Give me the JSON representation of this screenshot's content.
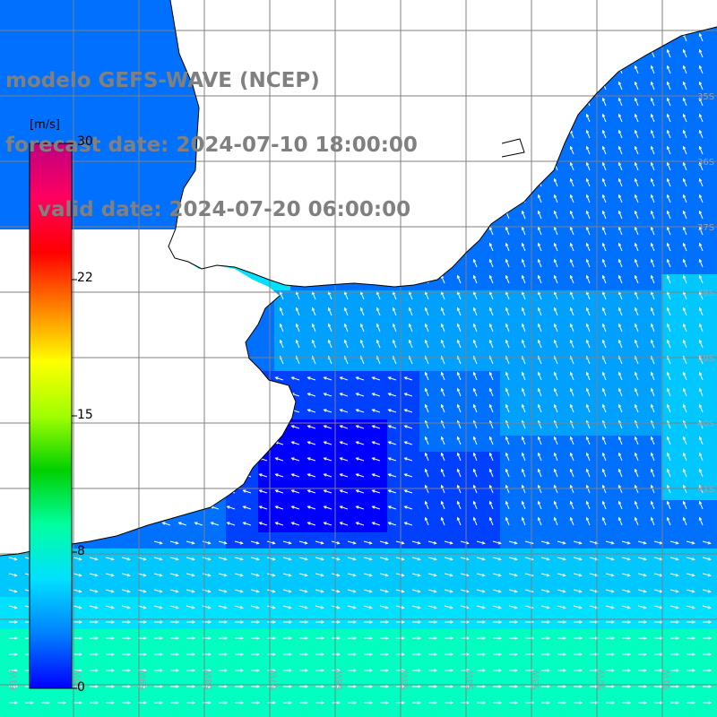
{
  "title": {
    "model": "modelo GEFS-WAVE (NCEP)",
    "forecast": "forecast date: 2024-07-10 18:00:00",
    "valid": "valid date: 2024-07-20 06:00:00"
  },
  "colorbar": {
    "unit": "[m/s]",
    "ticks": [
      "30",
      "22",
      "15",
      "8",
      "0"
    ],
    "colors": [
      "#0000ff",
      "#0080ff",
      "#00e0ff",
      "#00ffa0",
      "#00d000",
      "#a0ff00",
      "#ffff00",
      "#ff8000",
      "#ff0000",
      "#ff0060",
      "#c00080"
    ]
  },
  "map": {
    "field_colors": {
      "deep_blue": "#0000ff",
      "blue": "#0040ff",
      "mid_blue": "#0070ff",
      "light_blue": "#00a0ff",
      "cyan": "#00c8ff",
      "aqua": "#00e0ff",
      "teal": "#00ffc0"
    },
    "land_color": "#ffffff",
    "coast_color": "#000000",
    "grid_color": "#808080",
    "arrow_color": "#ffffff",
    "lat_labels_right": [
      "35S",
      "36S",
      "37S",
      "38S",
      "39S",
      "40S",
      "41S"
    ],
    "lon_labels_bottom": [
      "61W",
      "60W",
      "59W",
      "58W",
      "57W",
      "56W",
      "55W",
      "54W",
      "53W",
      "52W",
      "51W"
    ]
  }
}
